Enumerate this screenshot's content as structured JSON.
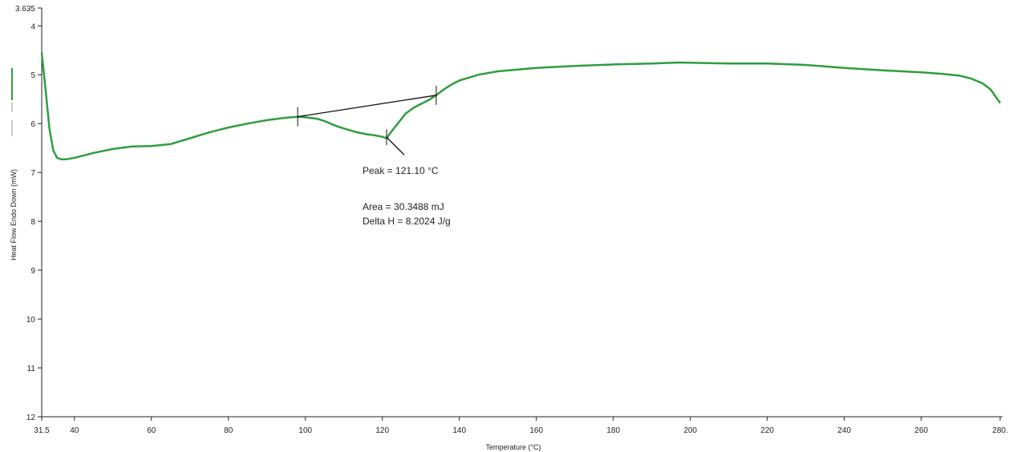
{
  "chart_data": {
    "type": "line",
    "title": "",
    "xlabel": "Temperature (°C)",
    "ylabel": "Heat Flow Endo Down (mW)",
    "xlim": [
      31.5,
      280.5
    ],
    "ylim": [
      12,
      3.635
    ],
    "y_inverted": true,
    "x_ticks": [
      {
        "value": 31.5,
        "label": "31.5"
      },
      {
        "value": 40,
        "label": "40"
      },
      {
        "value": 60,
        "label": "60"
      },
      {
        "value": 80,
        "label": "80"
      },
      {
        "value": 100,
        "label": "100"
      },
      {
        "value": 120,
        "label": "120"
      },
      {
        "value": 140,
        "label": "140"
      },
      {
        "value": 160,
        "label": "160"
      },
      {
        "value": 180,
        "label": "180"
      },
      {
        "value": 200,
        "label": "200"
      },
      {
        "value": 220,
        "label": "220"
      },
      {
        "value": 240,
        "label": "240"
      },
      {
        "value": 260,
        "label": "260"
      },
      {
        "value": 280.5,
        "label": "280."
      }
    ],
    "y_ticks": [
      {
        "value": 3.635,
        "label": "3.635"
      },
      {
        "value": 4,
        "label": "4"
      },
      {
        "value": 5,
        "label": "5"
      },
      {
        "value": 6,
        "label": "6"
      },
      {
        "value": 7,
        "label": "7"
      },
      {
        "value": 8,
        "label": "8"
      },
      {
        "value": 9,
        "label": "9"
      },
      {
        "value": 10,
        "label": "10"
      },
      {
        "value": 11,
        "label": "11"
      },
      {
        "value": 12,
        "label": "12"
      }
    ],
    "grid": false,
    "series": [
      {
        "color": "#2e9e3e",
        "x": [
          31.5,
          32.5,
          33.5,
          34.5,
          35.5,
          36.5,
          38,
          40,
          45,
          50,
          55,
          60,
          65,
          70,
          75,
          80,
          85,
          90,
          95,
          98,
          100,
          103,
          105,
          108,
          110,
          113,
          116,
          118,
          120,
          121.1,
          122,
          124,
          126,
          128,
          130,
          132,
          134,
          136,
          138,
          140,
          145,
          150,
          160,
          170,
          180,
          190,
          197,
          210,
          220,
          230,
          240,
          250,
          260,
          265,
          270,
          273,
          276,
          278,
          280.5
        ],
        "y": [
          4.55,
          5.3,
          6.1,
          6.55,
          6.7,
          6.73,
          6.73,
          6.7,
          6.6,
          6.52,
          6.47,
          6.46,
          6.42,
          6.3,
          6.18,
          6.08,
          6.0,
          5.93,
          5.88,
          5.86,
          5.87,
          5.9,
          5.95,
          6.05,
          6.1,
          6.17,
          6.22,
          6.24,
          6.27,
          6.3,
          6.2,
          6.0,
          5.8,
          5.68,
          5.6,
          5.52,
          5.42,
          5.3,
          5.2,
          5.12,
          5.0,
          4.93,
          4.86,
          4.82,
          4.79,
          4.77,
          4.75,
          4.77,
          4.77,
          4.8,
          4.86,
          4.91,
          4.95,
          4.98,
          5.02,
          5.08,
          5.18,
          5.3,
          5.58
        ]
      }
    ],
    "baseline": {
      "x": [
        98,
        134
      ],
      "y": [
        5.86,
        5.42
      ]
    },
    "peak_marker": {
      "x": 121.1,
      "y": 6.28
    },
    "annotations": {
      "peak": "Peak = 121.10 °C",
      "area": "Area = 30.3488 mJ",
      "delta_h": "Delta H = 8.2024 J/g"
    }
  }
}
